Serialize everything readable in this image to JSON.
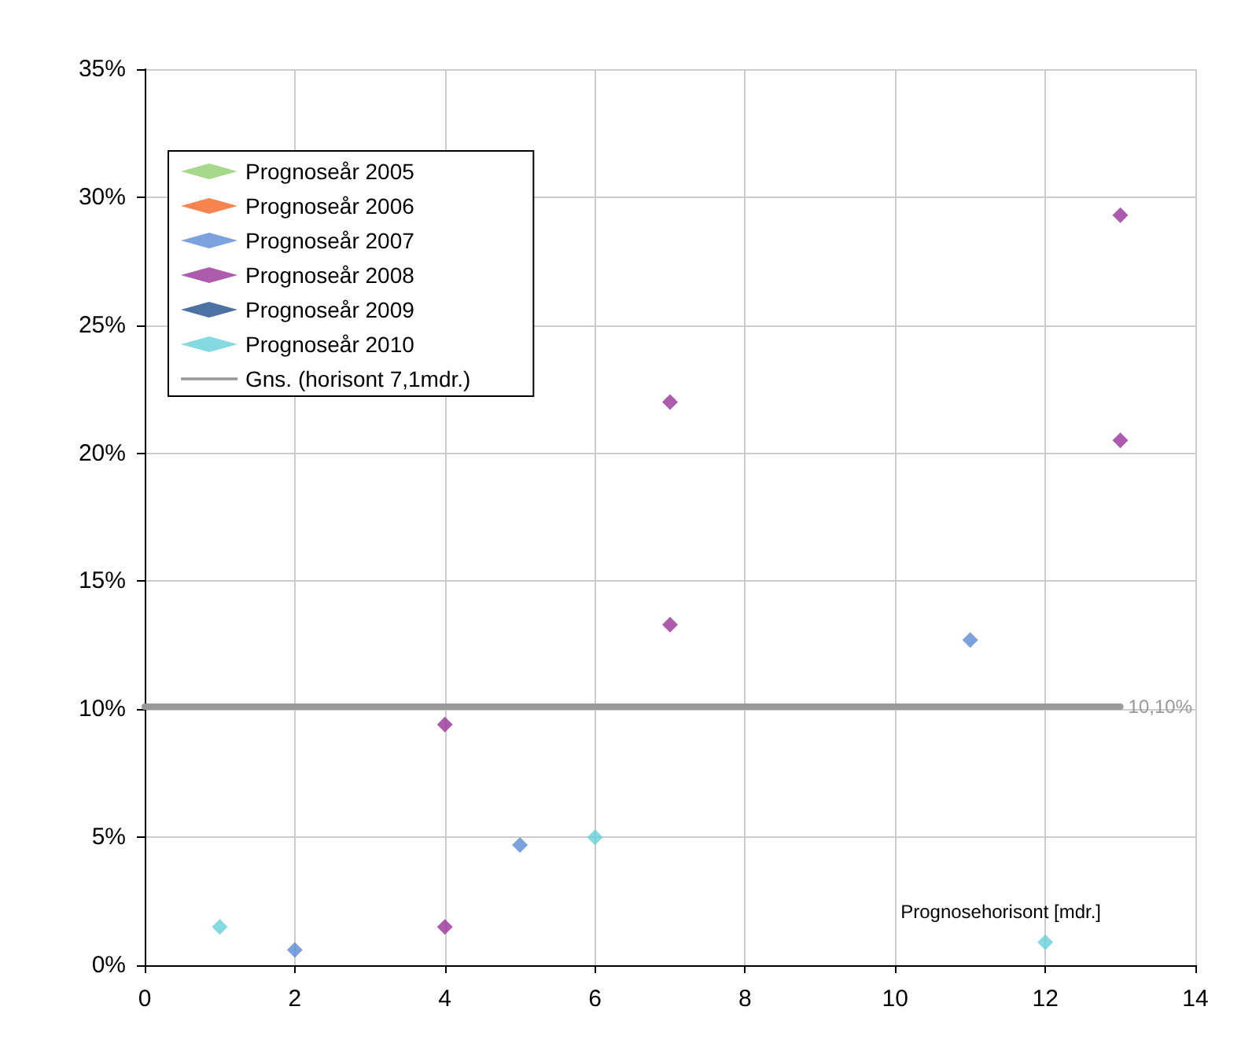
{
  "chart_data": {
    "type": "scatter",
    "xlabel": "Prognosehorisont [mdr.]",
    "xlim": [
      0,
      14
    ],
    "xticks": [
      0,
      2,
      4,
      6,
      8,
      10,
      12,
      14
    ],
    "ylim": [
      0,
      35
    ],
    "yticks": [
      {
        "value": 0,
        "label": "0%"
      },
      {
        "value": 5,
        "label": "5%"
      },
      {
        "value": 10,
        "label": "10%"
      },
      {
        "value": 15,
        "label": "15%"
      },
      {
        "value": 20,
        "label": "20%"
      },
      {
        "value": 25,
        "label": "25%"
      },
      {
        "value": 30,
        "label": "30%"
      },
      {
        "value": 35,
        "label": "35%"
      }
    ],
    "grid": true,
    "legend": "top left",
    "marker": "diamond",
    "series": [
      {
        "name": "Prognoseår 2005",
        "color": "#8fce6e"
      },
      {
        "name": "Prognoseår 2006",
        "color": "#f26522"
      },
      {
        "name": "Prognoseår 2007",
        "color": "#5b8bd6",
        "x": [
          2,
          5,
          11
        ],
        "values": [
          0.6,
          4.7,
          12.7
        ]
      },
      {
        "name": "Prognoseår 2008",
        "color": "#993399",
        "x": [
          4,
          4,
          7,
          7,
          13,
          13
        ],
        "values": [
          1.5,
          9.4,
          13.3,
          22.0,
          29.3,
          20.5
        ]
      },
      {
        "name": "Prognoseår 2009",
        "color": "#1f4e8c"
      },
      {
        "name": "Prognoseår 2010",
        "color": "#66d0d8",
        "x": [
          1,
          6,
          12
        ],
        "values": [
          1.5,
          5.0,
          0.9
        ]
      },
      {
        "name": "Gns. (horisont 7,1mdr.)",
        "type": "line",
        "marker": "none",
        "color": "#999999",
        "x": [
          0,
          13
        ],
        "values": [
          10.1,
          10.1
        ],
        "value_labels": [
          null,
          "10,10%"
        ]
      }
    ]
  }
}
